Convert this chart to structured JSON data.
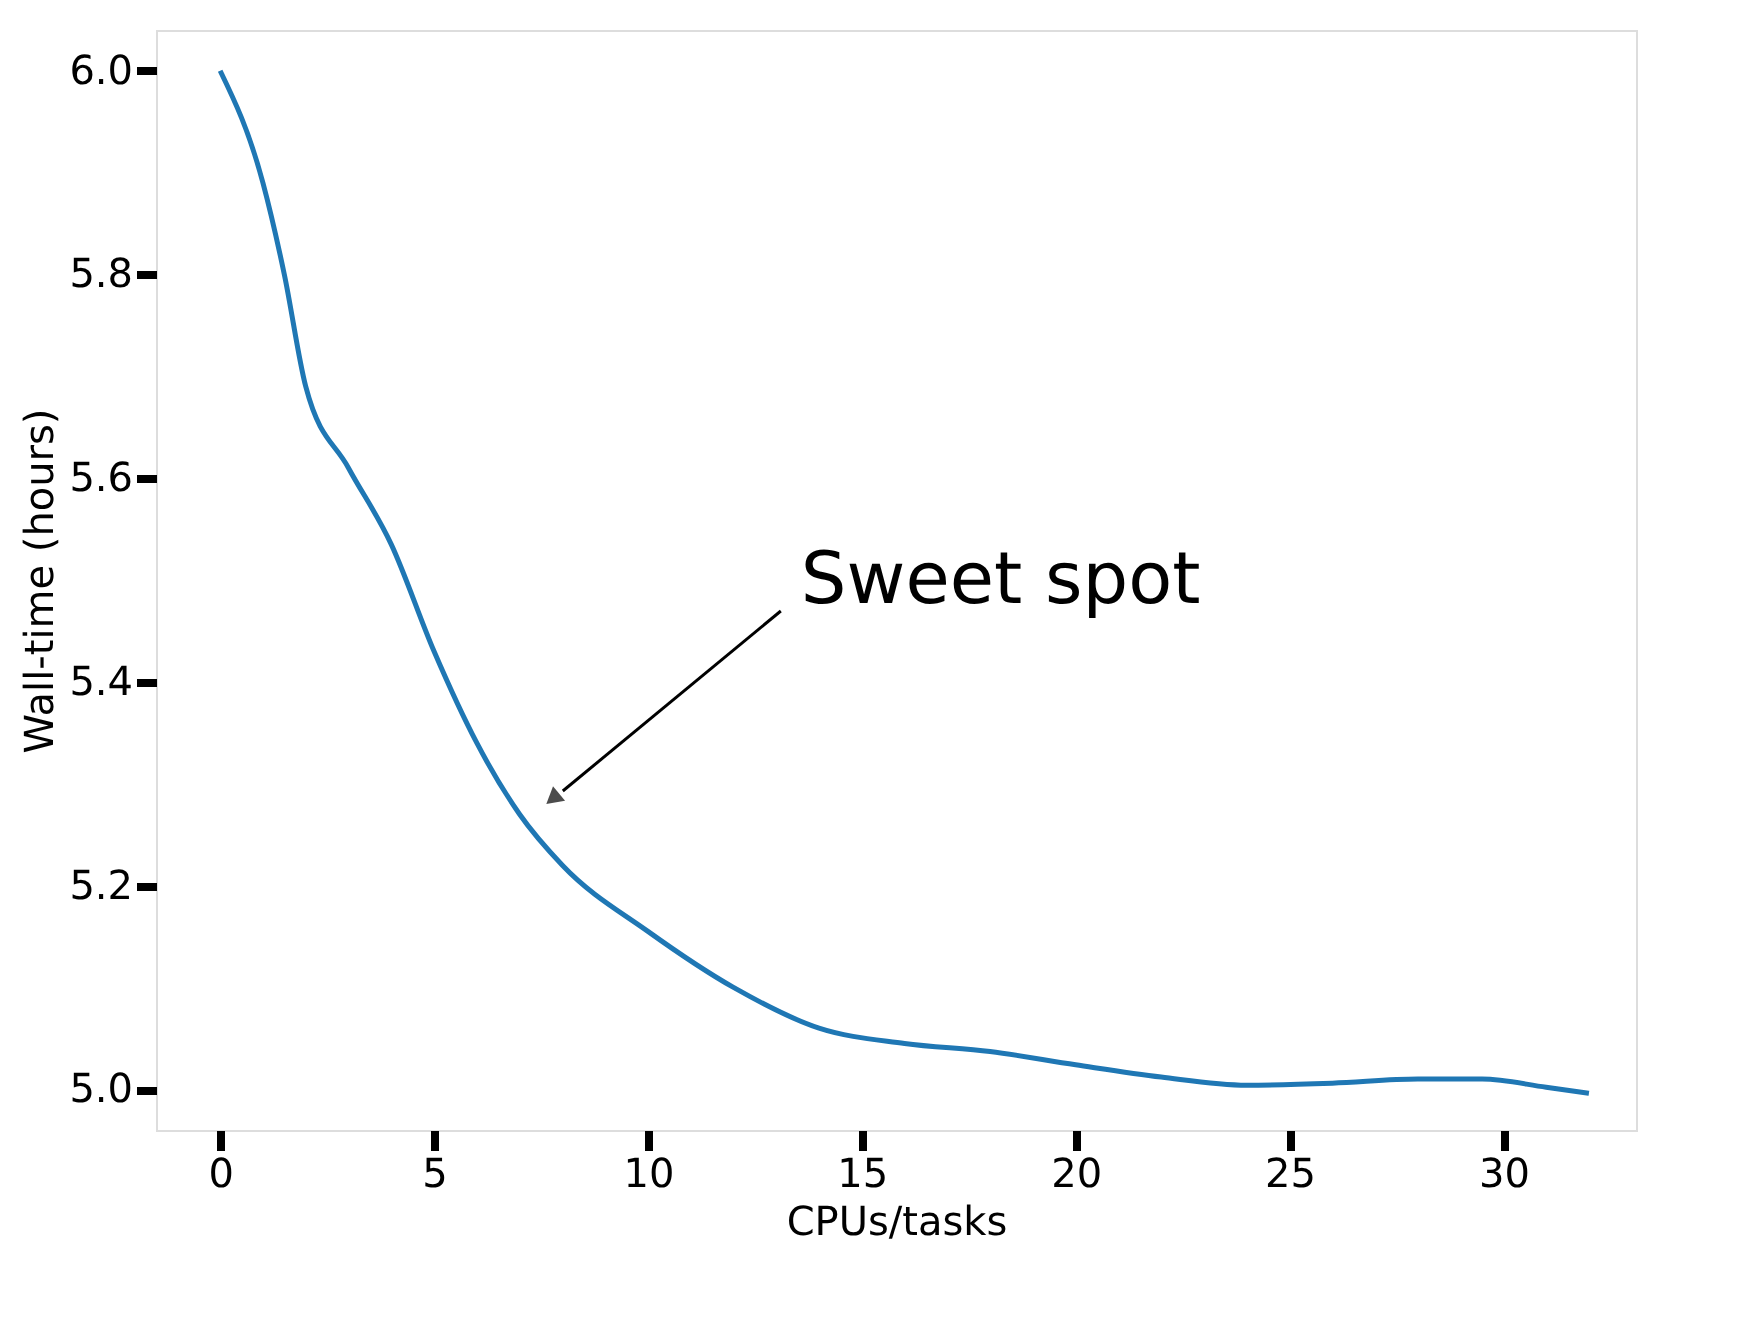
{
  "chart_data": {
    "type": "line",
    "xlabel": "CPUs/tasks",
    "ylabel": "Wall-time (hours)",
    "x": [
      0,
      1,
      1.5,
      2,
      3,
      4,
      5,
      6,
      7,
      8,
      10,
      12,
      14,
      16,
      18,
      20,
      22,
      24,
      26,
      28,
      29.5,
      31,
      32
    ],
    "series": [
      {
        "color": "#1f77b4",
        "values": [
          6.0,
          5.89,
          5.8,
          5.69,
          5.61,
          5.535,
          5.43,
          5.34,
          5.27,
          5.22,
          5.155,
          5.1,
          5.06,
          5.045,
          5.037,
          5.024,
          5.012,
          5.004,
          5.006,
          5.01,
          5.01,
          5.002,
          4.996
        ]
      }
    ],
    "xlim": [
      -1.5,
      33.1
    ],
    "ylim": [
      4.96,
      6.04
    ],
    "xticks": [
      0,
      5,
      10,
      15,
      20,
      25,
      30
    ],
    "yticks": [
      {
        "value": 5.0,
        "label": "5.0"
      },
      {
        "value": 5.2,
        "label": "5.2"
      },
      {
        "value": 5.4,
        "label": "5.4"
      },
      {
        "value": 5.6,
        "label": "5.6"
      },
      {
        "value": 5.8,
        "label": "5.8"
      },
      {
        "value": 6.0,
        "label": "6.0"
      }
    ],
    "annotations": [
      "Sweet  spot"
    ],
    "grid": false,
    "marker": "none",
    "line_style": "solid"
  }
}
